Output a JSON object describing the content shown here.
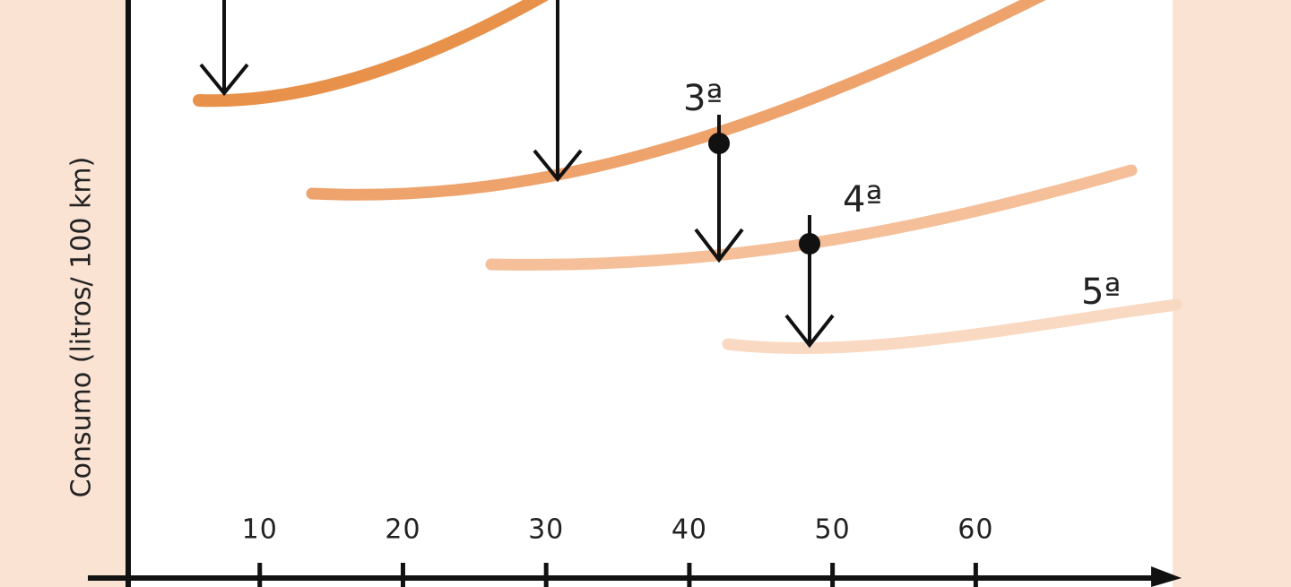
{
  "chart_data": {
    "type": "line",
    "y_label": "Consumo (litros/ 100 km)",
    "xlim": [
      0.75,
      73
    ],
    "xticks": [
      10,
      20,
      30,
      40,
      50,
      60
    ],
    "annotations": [
      "3ª",
      "4ª",
      "5ª"
    ]
  }
}
